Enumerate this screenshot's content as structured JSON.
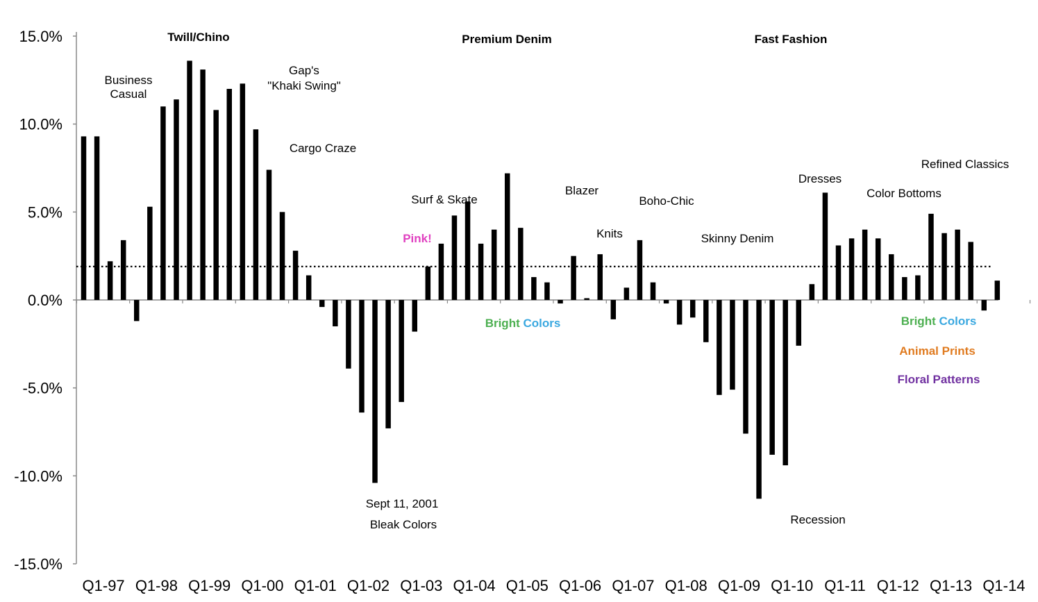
{
  "chart_data": {
    "type": "bar",
    "ylim": [
      -15,
      15
    ],
    "y_ticks": [
      "15.0%",
      "10.0%",
      "5.0%",
      "0.0%",
      "-5.0%",
      "-10.0%",
      "-15.0%"
    ],
    "x_tick_labels": [
      "Q1-97",
      "Q1-98",
      "Q1-99",
      "Q1-00",
      "Q1-01",
      "Q1-02",
      "Q1-03",
      "Q1-04",
      "Q1-05",
      "Q1-06",
      "Q1-07",
      "Q1-08",
      "Q1-09",
      "Q1-10",
      "Q1-11",
      "Q1-12",
      "Q1-13",
      "Q1-14"
    ],
    "categories": [
      "Q1-97",
      "Q2-97",
      "Q3-97",
      "Q4-97",
      "Q1-98",
      "Q2-98",
      "Q3-98",
      "Q4-98",
      "Q1-99",
      "Q2-99",
      "Q3-99",
      "Q4-99",
      "Q1-00",
      "Q2-00",
      "Q3-00",
      "Q4-00",
      "Q1-01",
      "Q2-01",
      "Q3-01",
      "Q4-01",
      "Q1-02",
      "Q2-02",
      "Q3-02",
      "Q4-02",
      "Q1-03",
      "Q2-03",
      "Q3-03",
      "Q4-03",
      "Q1-04",
      "Q2-04",
      "Q3-04",
      "Q4-04",
      "Q1-05",
      "Q2-05",
      "Q3-05",
      "Q4-05",
      "Q1-06",
      "Q2-06",
      "Q3-06",
      "Q4-06",
      "Q1-07",
      "Q2-07",
      "Q3-07",
      "Q4-07",
      "Q1-08",
      "Q2-08",
      "Q3-08",
      "Q4-08",
      "Q1-09",
      "Q2-09",
      "Q3-09",
      "Q4-09",
      "Q1-10",
      "Q2-10",
      "Q3-10",
      "Q4-10",
      "Q1-11",
      "Q2-11",
      "Q3-11",
      "Q4-11",
      "Q1-12",
      "Q2-12",
      "Q3-12",
      "Q4-12",
      "Q1-13",
      "Q2-13",
      "Q3-13",
      "Q4-13",
      "Q1-14",
      "Q2-14"
    ],
    "values": [
      9.3,
      9.3,
      2.2,
      3.4,
      -1.2,
      5.3,
      11.0,
      11.4,
      13.6,
      13.1,
      10.8,
      12.0,
      12.3,
      9.7,
      7.4,
      5.0,
      2.8,
      1.4,
      -0.4,
      -1.5,
      -3.9,
      -6.4,
      -10.4,
      -7.3,
      -5.8,
      -1.8,
      1.9,
      3.2,
      4.8,
      5.6,
      3.2,
      4.0,
      7.2,
      4.1,
      1.3,
      1.0,
      -0.2,
      2.5,
      0.1,
      2.6,
      -1.1,
      0.7,
      3.4,
      1.0,
      -0.2,
      -1.4,
      -1.0,
      -2.4,
      -5.4,
      -5.1,
      -7.6,
      -11.3,
      -8.8,
      -9.4,
      -2.6,
      0.9,
      6.1,
      3.1,
      3.5,
      4.0,
      3.5,
      2.6,
      1.3,
      1.4,
      4.9,
      3.8,
      4.0,
      3.3,
      -0.6,
      1.1
    ],
    "average_line": 1.9,
    "annotations": [
      {
        "text": "Twill/Chino",
        "bold": true,
        "color": "#000000"
      },
      {
        "text": "Premium Denim",
        "bold": true,
        "color": "#000000"
      },
      {
        "text": "Fast Fashion",
        "bold": true,
        "color": "#000000"
      },
      {
        "text": "Business",
        "bold": false,
        "color": "#000000"
      },
      {
        "text": "Casual",
        "bold": false,
        "color": "#000000"
      },
      {
        "text": "Gap's",
        "bold": false,
        "color": "#000000"
      },
      {
        "text": "\"Khaki Swing\"",
        "bold": false,
        "color": "#000000"
      },
      {
        "text": "Cargo Craze",
        "bold": false,
        "color": "#000000"
      },
      {
        "text": "Surf & Skate",
        "bold": false,
        "color": "#000000"
      },
      {
        "text": "Pink!",
        "bold": true,
        "color": "#e040c0"
      },
      {
        "text": "Blazer",
        "bold": false,
        "color": "#000000"
      },
      {
        "text": "Knits",
        "bold": false,
        "color": "#000000"
      },
      {
        "text": "Boho-Chic",
        "bold": false,
        "color": "#000000"
      },
      {
        "text": "Skinny Denim",
        "bold": false,
        "color": "#000000"
      },
      {
        "text": "Dresses",
        "bold": false,
        "color": "#000000"
      },
      {
        "text": "Color Bottoms",
        "bold": false,
        "color": "#000000"
      },
      {
        "text": "Refined Classics",
        "bold": false,
        "color": "#000000"
      },
      {
        "text": "Sept 11, 2001",
        "bold": false,
        "color": "#000000"
      },
      {
        "text": "Bleak Colors",
        "bold": false,
        "color": "#000000"
      },
      {
        "text": "Recession",
        "bold": false,
        "color": "#000000"
      },
      {
        "text": "Animal Prints",
        "bold": true,
        "color": "#e07b20"
      },
      {
        "text": "Floral Patterns",
        "bold": true,
        "color": "#7030a0"
      }
    ],
    "two_tone_annotations": [
      {
        "parts": [
          {
            "text": "Bright",
            "color": "#4caf50"
          },
          {
            "text": "Colors",
            "color": "#3aa8e0"
          }
        ]
      },
      {
        "parts": [
          {
            "text": "Bright",
            "color": "#4caf50"
          },
          {
            "text": "Colors",
            "color": "#3aa8e0"
          }
        ]
      }
    ],
    "colors": {
      "bar": "#000000",
      "axis": "#888888",
      "average_line": "#000000"
    }
  }
}
